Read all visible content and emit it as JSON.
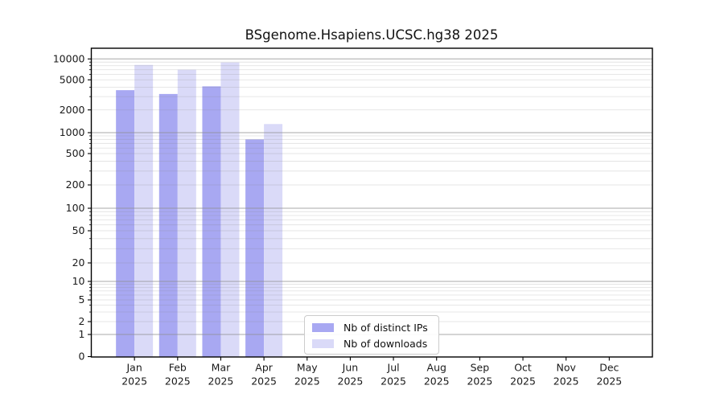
{
  "title": "BSgenome.Hsapiens.UCSC.hg38 2025",
  "chart_data": {
    "type": "bar",
    "title": "BSgenome.Hsapiens.UCSC.hg38 2025",
    "categories": [
      "Jan",
      "Feb",
      "Mar",
      "Apr",
      "May",
      "Jun",
      "Jul",
      "Aug",
      "Sep",
      "Oct",
      "Nov",
      "Dec"
    ],
    "year": "2025",
    "series": [
      {
        "name": "Nb of distinct IPs",
        "color": "#a8a8f2",
        "values": [
          3650,
          3250,
          4100,
          800,
          null,
          null,
          null,
          null,
          null,
          null,
          null,
          null
        ]
      },
      {
        "name": "Nb of downloads",
        "color": "#dadaf8",
        "values": [
          8200,
          7000,
          8900,
          1300,
          null,
          null,
          null,
          null,
          null,
          null,
          null,
          null
        ]
      }
    ],
    "y_axis": {
      "scale": "symlog",
      "tick_values": [
        0,
        1,
        2,
        5,
        10,
        20,
        50,
        100,
        200,
        500,
        1000,
        2000,
        5000,
        10000
      ],
      "tick_labels": [
        "0",
        "1",
        "2",
        "5",
        "10",
        "20",
        "50",
        "100",
        "200",
        "500",
        "1000",
        "2000",
        "5000",
        "10000"
      ],
      "range": [
        0,
        10000
      ]
    },
    "grid": "horizontal, minor log gridlines, drawn over bars",
    "legend_position": "inside bottom-center",
    "legend_labels": [
      "Nb of distinct IPs",
      "Nb of downloads"
    ]
  },
  "colors": {
    "axis": "#000000",
    "major_grid": "#b0b0b0",
    "minor_grid": "#e9e9e9",
    "text": "#1a1a1a"
  }
}
